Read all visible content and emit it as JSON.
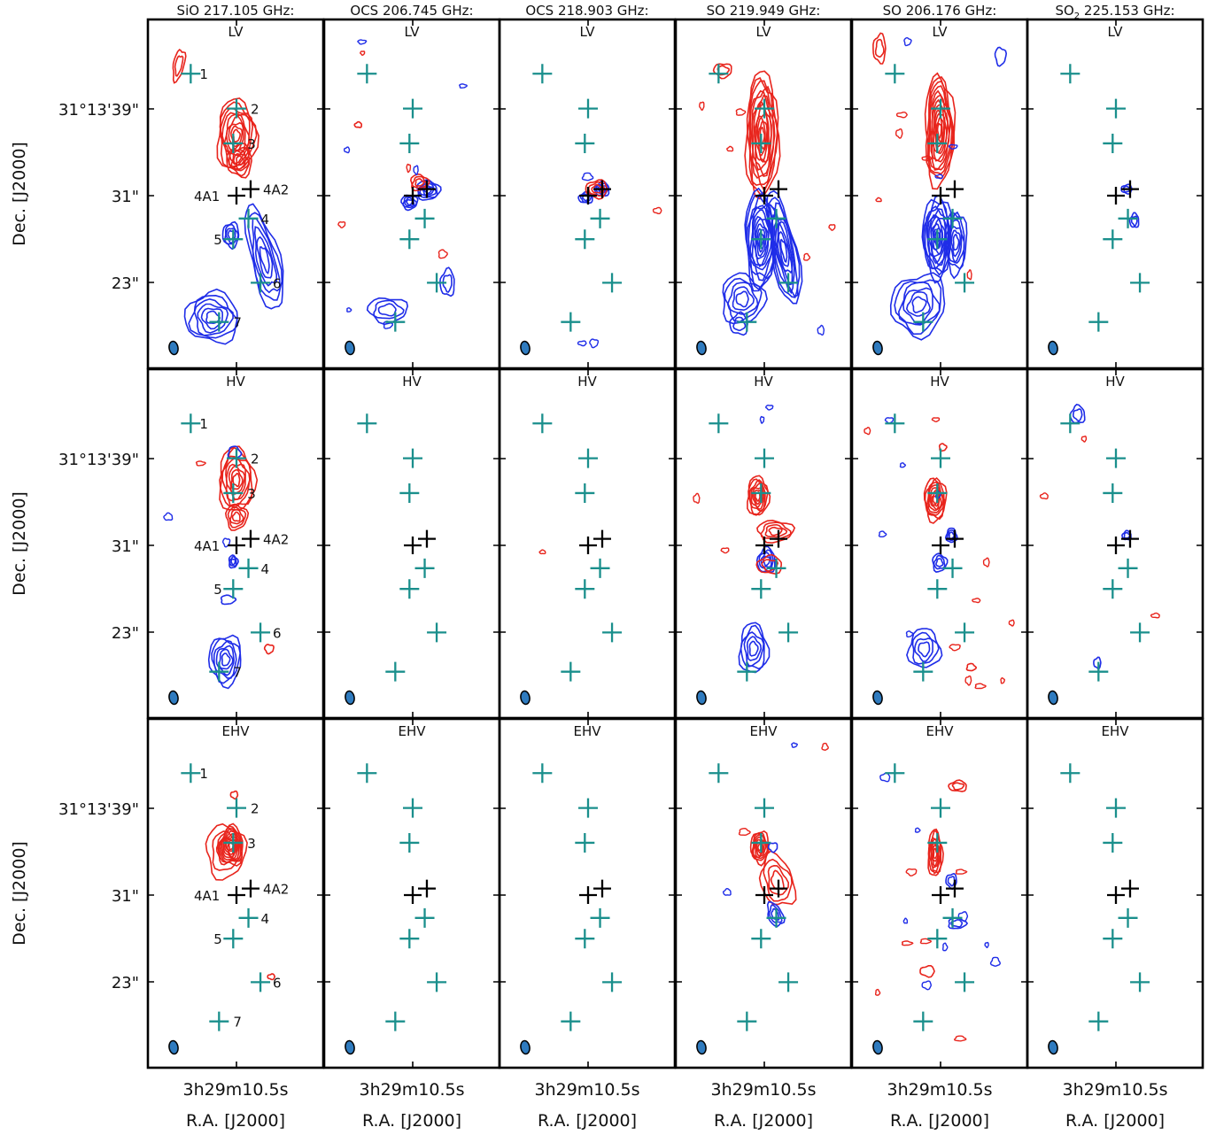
{
  "chart_data": {
    "type": "contour",
    "columns": [
      {
        "title": "SiO 217.105 GHz:",
        "species": "SiO",
        "freq": "217.105 GHz:"
      },
      {
        "title": "OCS 206.745 GHz:",
        "species": "OCS",
        "freq": "206.745 GHz:"
      },
      {
        "title": "OCS 218.903 GHz:",
        "species": "OCS",
        "freq": "218.903 GHz:"
      },
      {
        "title": "SO 219.949 GHz:",
        "species": "SO",
        "freq": "219.949 GHz:"
      },
      {
        "title": "SO 206.176 GHz:",
        "species": "SO",
        "freq": "206.176 GHz:"
      },
      {
        "title": "SO2 225.153 GHz:",
        "species": "SO",
        "sub": "2",
        "freq": " 225.153 GHz:"
      }
    ],
    "rows": [
      "LV",
      "HV",
      "EHV"
    ],
    "xlabel": "R.A. [J2000]",
    "ylabel": "Dec. [J2000]",
    "x_tick_label": "3h29m10.5s",
    "y_tick_labels": [
      "31°13'39\"",
      "31\"",
      "23\""
    ],
    "source_labels": [
      "1",
      "2",
      "3",
      "4A1",
      "4A2",
      "4",
      "5",
      "6",
      "7"
    ],
    "source_offsets_arcsec": {
      "1": [
        -4.2,
        11.2
      ],
      "2": [
        0.0,
        8.0
      ],
      "3": [
        -0.3,
        4.8
      ],
      "4A1": [
        0.0,
        0.0
      ],
      "4A2": [
        1.3,
        0.6
      ],
      "4": [
        1.1,
        -2.1
      ],
      "5": [
        -0.3,
        -4.0
      ],
      "6": [
        2.2,
        -8.0
      ],
      "7": [
        -1.6,
        -11.6
      ]
    },
    "colors": {
      "redshifted": "#e8241c",
      "blueshifted": "#1f2de8",
      "marker_teal": "#1a8f8c",
      "marker_black": "#000000",
      "beam": "#2f7bbf"
    }
  }
}
